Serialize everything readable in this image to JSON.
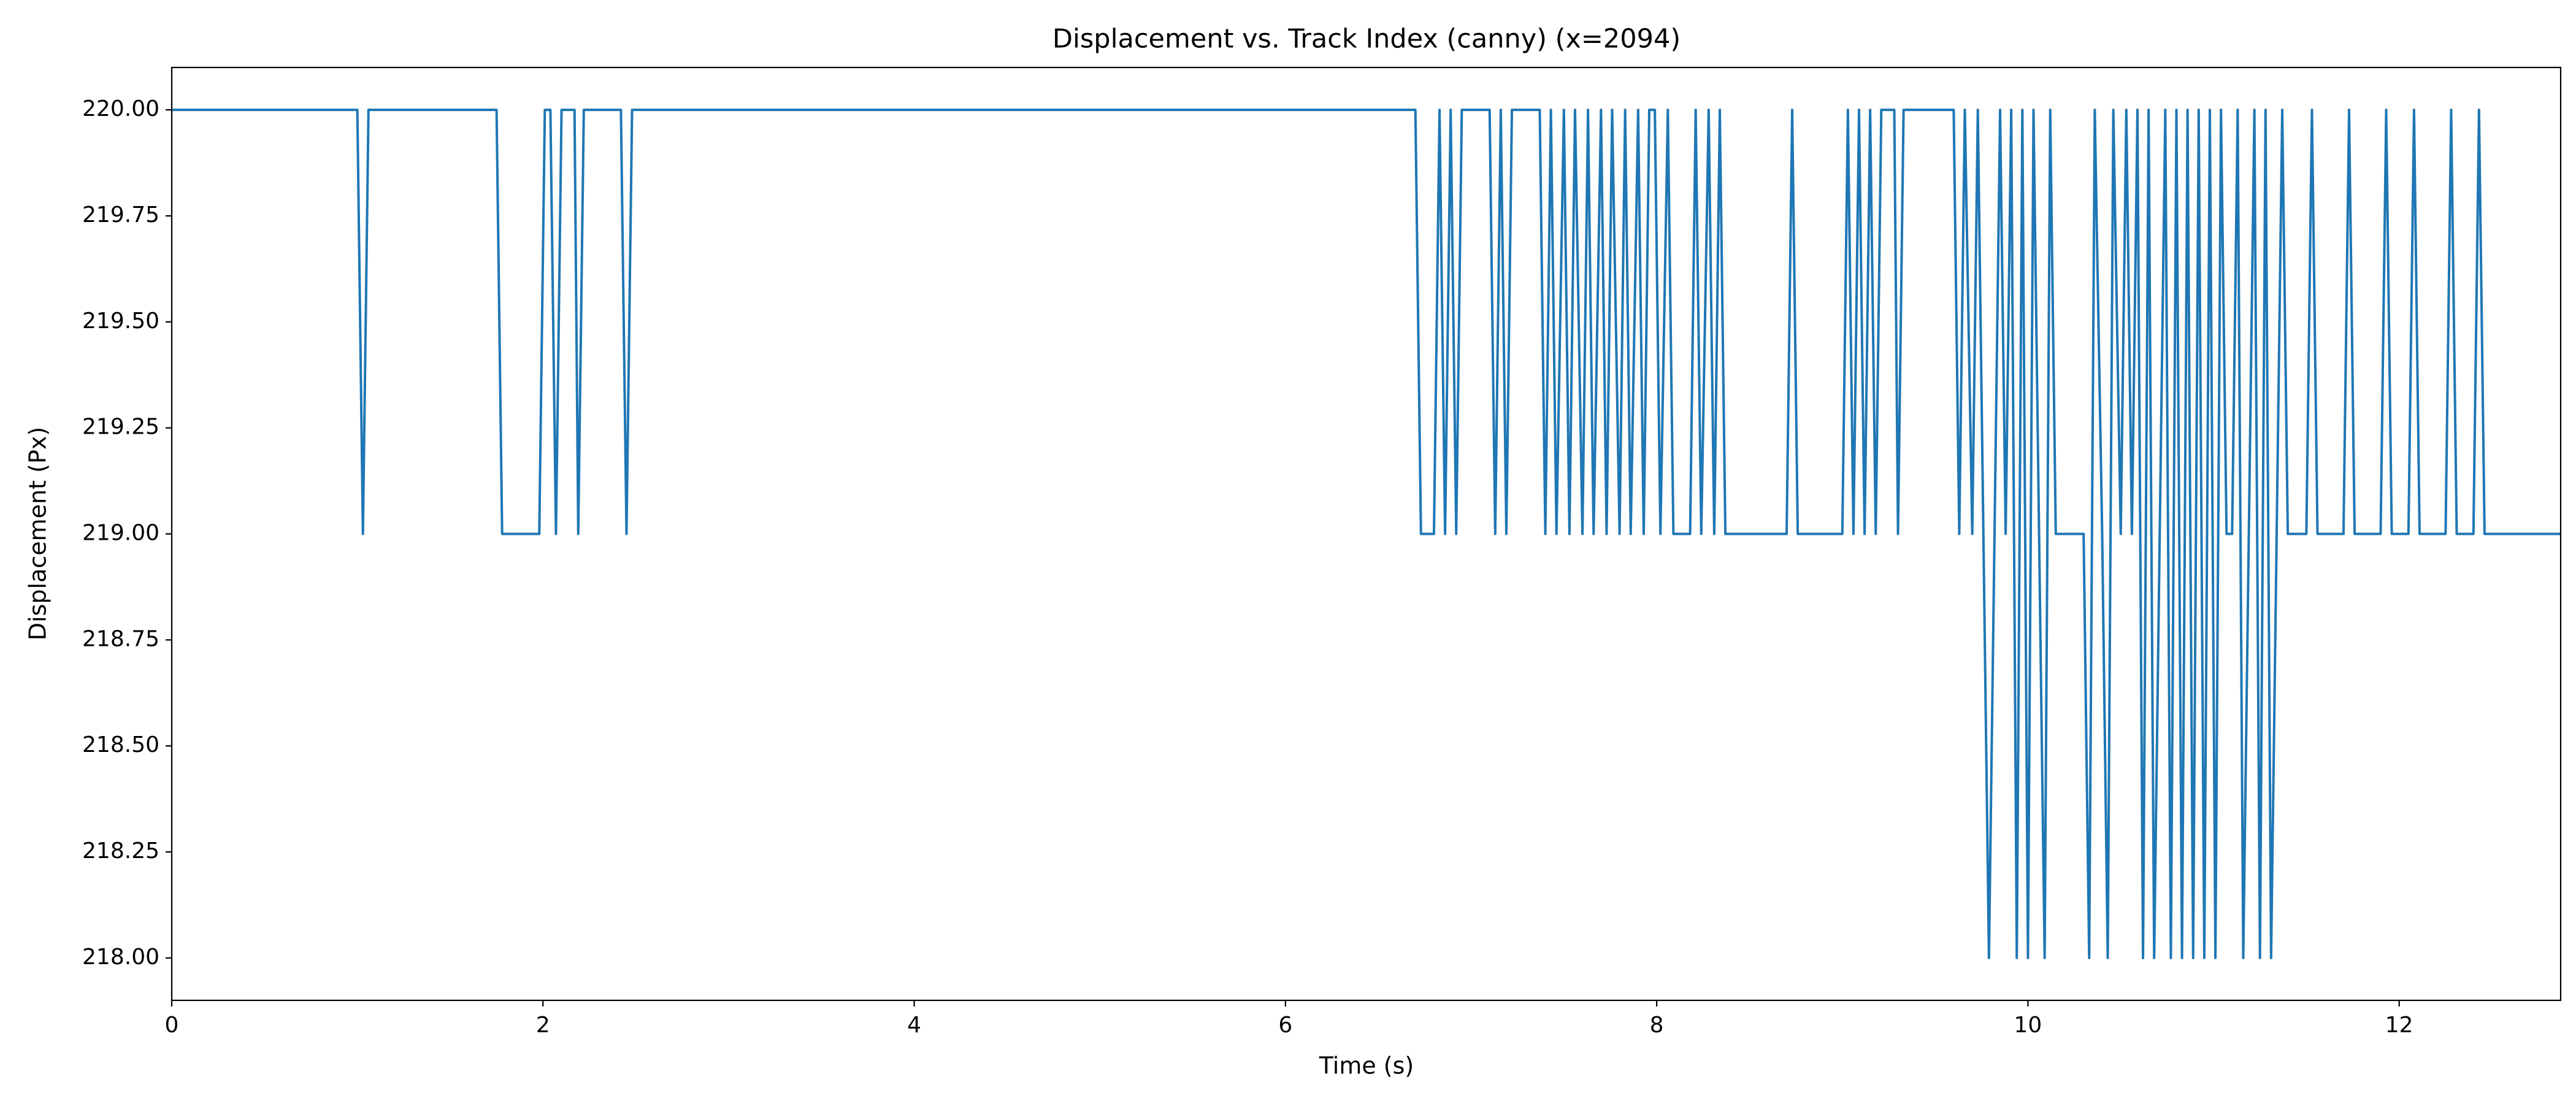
{
  "chart_data": {
    "type": "line",
    "title": "Displacement vs. Track Index (canny) (x=2094)",
    "x_label": "Time (s)",
    "y_label": "Displacement (Px)",
    "x": [
      0,
      1.0,
      1.03,
      1.06,
      1.75,
      1.78,
      1.98,
      2.01,
      2.04,
      2.07,
      2.1,
      2.17,
      2.19,
      2.22,
      2.42,
      2.45,
      2.48,
      6.7,
      6.73,
      6.8,
      6.83,
      6.86,
      6.89,
      6.92,
      6.95,
      7.1,
      7.13,
      7.16,
      7.19,
      7.22,
      7.37,
      7.4,
      7.43,
      7.46,
      7.5,
      7.53,
      7.56,
      7.6,
      7.63,
      7.66,
      7.7,
      7.73,
      7.76,
      7.8,
      7.83,
      7.86,
      7.9,
      7.93,
      7.96,
      7.99,
      8.02,
      8.06,
      8.09,
      8.18,
      8.21,
      8.24,
      8.28,
      8.31,
      8.34,
      8.37,
      8.7,
      8.73,
      8.76,
      9.0,
      9.03,
      9.06,
      9.09,
      9.12,
      9.15,
      9.18,
      9.21,
      9.28,
      9.3,
      9.33,
      9.6,
      9.63,
      9.66,
      9.7,
      9.73,
      9.76,
      9.79,
      9.82,
      9.85,
      9.88,
      9.91,
      9.94,
      9.97,
      10.0,
      10.03,
      10.06,
      10.09,
      10.12,
      10.15,
      10.3,
      10.33,
      10.36,
      10.4,
      10.43,
      10.46,
      10.5,
      10.53,
      10.56,
      10.59,
      10.62,
      10.65,
      10.68,
      10.71,
      10.74,
      10.77,
      10.8,
      10.83,
      10.86,
      10.89,
      10.92,
      10.95,
      10.98,
      11.01,
      11.04,
      11.07,
      11.1,
      11.13,
      11.16,
      11.19,
      11.22,
      11.25,
      11.28,
      11.31,
      11.34,
      11.37,
      11.4,
      11.5,
      11.53,
      11.56,
      11.7,
      11.73,
      11.76,
      11.9,
      11.93,
      11.96,
      12.05,
      12.08,
      12.11,
      12.25,
      12.28,
      12.31,
      12.4,
      12.43,
      12.46,
      12.87
    ],
    "series": [
      {
        "color": "#1f77b4",
        "values": [
          220,
          220,
          219,
          220,
          220,
          219,
          219,
          220,
          220,
          219,
          220,
          220,
          219,
          220,
          220,
          219,
          220,
          220,
          219,
          219,
          220,
          219,
          220,
          219,
          220,
          220,
          219,
          220,
          219,
          220,
          220,
          219,
          220,
          219,
          220,
          219,
          220,
          219,
          220,
          219,
          220,
          219,
          220,
          219,
          220,
          219,
          220,
          219,
          220,
          220,
          219,
          220,
          219,
          219,
          220,
          219,
          220,
          219,
          220,
          219,
          219,
          220,
          219,
          219,
          220,
          219,
          220,
          219,
          220,
          219,
          220,
          220,
          219,
          220,
          220,
          219,
          220,
          219,
          220,
          219,
          218,
          219,
          220,
          219,
          220,
          218,
          220,
          218,
          220,
          219,
          218,
          220,
          219,
          219,
          218,
          220,
          219,
          218,
          220,
          219,
          220,
          219,
          220,
          218,
          220,
          218,
          219,
          220,
          218,
          220,
          218,
          220,
          218,
          220,
          218,
          220,
          218,
          220,
          219,
          219,
          220,
          218,
          219,
          220,
          218,
          220,
          218,
          219,
          220,
          219,
          219,
          220,
          219,
          219,
          220,
          219,
          219,
          220,
          219,
          219,
          220,
          219,
          219,
          220,
          219,
          219,
          220,
          219,
          219
        ]
      }
    ],
    "xlim": [
      0,
      12.87
    ],
    "ylim": [
      217.9,
      220.1
    ],
    "xticks": [
      0,
      2,
      4,
      6,
      8,
      10,
      12
    ],
    "yticks": [
      {
        "value": 218,
        "label": "218.00"
      },
      {
        "value": 218.25,
        "label": "218.25"
      },
      {
        "value": 218.5,
        "label": "218.50"
      },
      {
        "value": 218.75,
        "label": "218.75"
      },
      {
        "value": 219,
        "label": "219.00"
      },
      {
        "value": 219.25,
        "label": "219.25"
      },
      {
        "value": 219.5,
        "label": "219.50"
      },
      {
        "value": 219.75,
        "label": "219.75"
      },
      {
        "value": 220,
        "label": "220.00"
      }
    ],
    "grid": false
  }
}
